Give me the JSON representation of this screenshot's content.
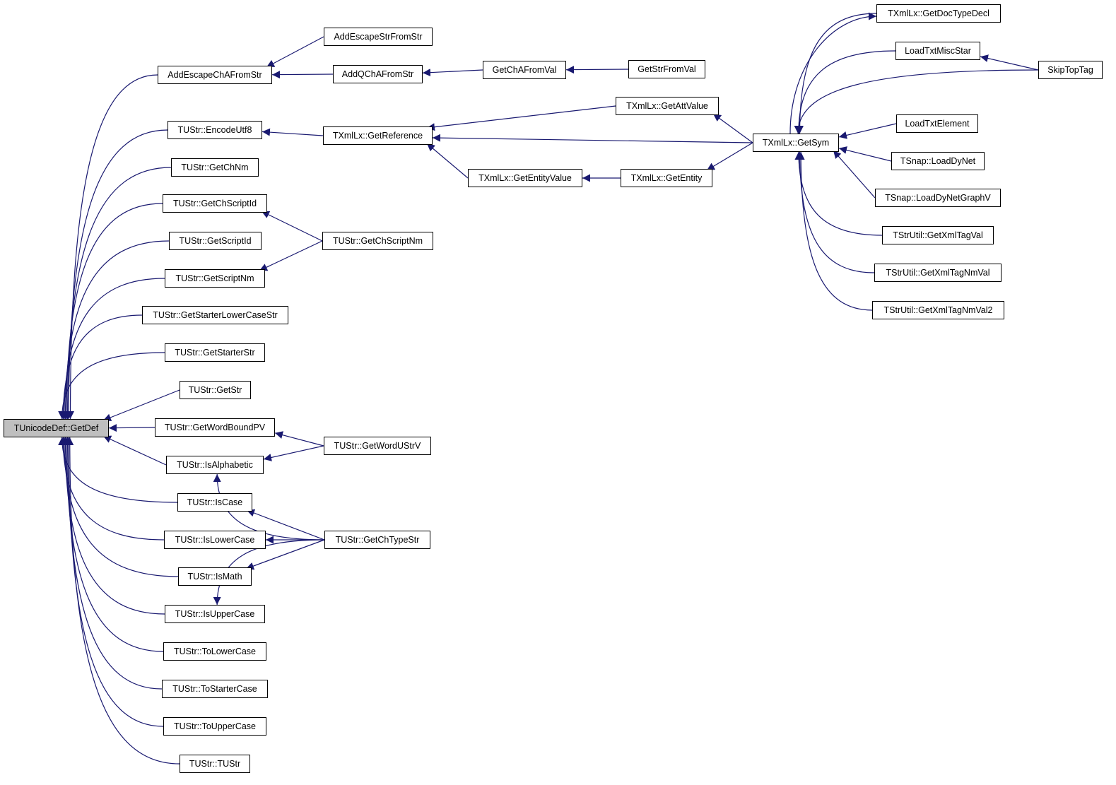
{
  "graph": {
    "edge_color": "#191970",
    "root_fill": "#bfbfbf",
    "nodes": [
      {
        "id": "GetDef",
        "label": "TUnicodeDef::GetDef",
        "root": true
      },
      {
        "id": "AddEscapeChAFromStr",
        "label": "AddEscapeChAFromStr"
      },
      {
        "id": "EncodeUtf8",
        "label": "TUStr::EncodeUtf8"
      },
      {
        "id": "GetChNm",
        "label": "TUStr::GetChNm"
      },
      {
        "id": "GetChScriptId",
        "label": "TUStr::GetChScriptId"
      },
      {
        "id": "GetScriptId",
        "label": "TUStr::GetScriptId"
      },
      {
        "id": "GetScriptNm",
        "label": "TUStr::GetScriptNm"
      },
      {
        "id": "GetStarterLowerCaseStr",
        "label": "TUStr::GetStarterLowerCaseStr"
      },
      {
        "id": "GetStarterStr",
        "label": "TUStr::GetStarterStr"
      },
      {
        "id": "GetStr",
        "label": "TUStr::GetStr"
      },
      {
        "id": "GetWordBoundPV",
        "label": "TUStr::GetWordBoundPV"
      },
      {
        "id": "IsAlphabetic",
        "label": "TUStr::IsAlphabetic"
      },
      {
        "id": "IsCase",
        "label": "TUStr::IsCase"
      },
      {
        "id": "IsLowerCase",
        "label": "TUStr::IsLowerCase"
      },
      {
        "id": "IsMath",
        "label": "TUStr::IsMath"
      },
      {
        "id": "IsUpperCase",
        "label": "TUStr::IsUpperCase"
      },
      {
        "id": "ToLowerCase",
        "label": "TUStr::ToLowerCase"
      },
      {
        "id": "ToStarterCase",
        "label": "TUStr::ToStarterCase"
      },
      {
        "id": "ToUpperCase",
        "label": "TUStr::ToUpperCase"
      },
      {
        "id": "TUStr",
        "label": "TUStr::TUStr"
      },
      {
        "id": "AddEscapeStrFromStr",
        "label": "AddEscapeStrFromStr"
      },
      {
        "id": "AddQChAFromStr",
        "label": "AddQChAFromStr"
      },
      {
        "id": "GetReference",
        "label": "TXmlLx::GetReference"
      },
      {
        "id": "GetChScriptNm",
        "label": "TUStr::GetChScriptNm"
      },
      {
        "id": "GetWordUStrV",
        "label": "TUStr::GetWordUStrV"
      },
      {
        "id": "GetChTypeStr",
        "label": "TUStr::GetChTypeStr"
      },
      {
        "id": "GetChAFromVal",
        "label": "GetChAFromVal"
      },
      {
        "id": "GetEntityValue",
        "label": "TXmlLx::GetEntityValue"
      },
      {
        "id": "GetStrFromVal",
        "label": "GetStrFromVal"
      },
      {
        "id": "GetAttValue",
        "label": "TXmlLx::GetAttValue"
      },
      {
        "id": "GetEntity",
        "label": "TXmlLx::GetEntity"
      },
      {
        "id": "GetSym",
        "label": "TXmlLx::GetSym"
      },
      {
        "id": "GetDocTypeDecl",
        "label": "TXmlLx::GetDocTypeDecl"
      },
      {
        "id": "LoadTxtMiscStar",
        "label": "LoadTxtMiscStar"
      },
      {
        "id": "LoadTxtElement",
        "label": "LoadTxtElement"
      },
      {
        "id": "LoadDyNet",
        "label": "TSnap::LoadDyNet"
      },
      {
        "id": "LoadDyNetGraphV",
        "label": "TSnap::LoadDyNetGraphV"
      },
      {
        "id": "GetXmlTagVal",
        "label": "TStrUtil::GetXmlTagVal"
      },
      {
        "id": "GetXmlTagNmVal",
        "label": "TStrUtil::GetXmlTagNmVal"
      },
      {
        "id": "GetXmlTagNmVal2",
        "label": "TStrUtil::GetXmlTagNmVal2"
      },
      {
        "id": "SkipTopTag",
        "label": "SkipTopTag"
      }
    ],
    "edges": [
      [
        "AddEscapeChAFromStr",
        "GetDef"
      ],
      [
        "EncodeUtf8",
        "GetDef"
      ],
      [
        "GetChNm",
        "GetDef"
      ],
      [
        "GetChScriptId",
        "GetDef"
      ],
      [
        "GetScriptId",
        "GetDef"
      ],
      [
        "GetScriptNm",
        "GetDef"
      ],
      [
        "GetStarterLowerCaseStr",
        "GetDef"
      ],
      [
        "GetStarterStr",
        "GetDef"
      ],
      [
        "GetStr",
        "GetDef"
      ],
      [
        "GetWordBoundPV",
        "GetDef"
      ],
      [
        "IsAlphabetic",
        "GetDef"
      ],
      [
        "IsCase",
        "GetDef"
      ],
      [
        "IsLowerCase",
        "GetDef"
      ],
      [
        "IsMath",
        "GetDef"
      ],
      [
        "IsUpperCase",
        "GetDef"
      ],
      [
        "ToLowerCase",
        "GetDef"
      ],
      [
        "ToStarterCase",
        "GetDef"
      ],
      [
        "ToUpperCase",
        "GetDef"
      ],
      [
        "TUStr",
        "GetDef"
      ],
      [
        "AddEscapeStrFromStr",
        "AddEscapeChAFromStr"
      ],
      [
        "AddQChAFromStr",
        "AddEscapeChAFromStr"
      ],
      [
        "GetChAFromVal",
        "AddQChAFromStr"
      ],
      [
        "GetStrFromVal",
        "GetChAFromVal"
      ],
      [
        "GetReference",
        "EncodeUtf8"
      ],
      [
        "GetAttValue",
        "GetReference"
      ],
      [
        "GetSym",
        "GetReference"
      ],
      [
        "GetEntityValue",
        "GetReference"
      ],
      [
        "GetEntity",
        "GetEntityValue"
      ],
      [
        "GetSym",
        "GetAttValue"
      ],
      [
        "GetSym",
        "GetEntity"
      ],
      [
        "GetChScriptNm",
        "GetChScriptId"
      ],
      [
        "GetChScriptNm",
        "GetScriptNm"
      ],
      [
        "GetWordUStrV",
        "GetWordBoundPV"
      ],
      [
        "GetWordUStrV",
        "IsAlphabetic"
      ],
      [
        "GetChTypeStr",
        "IsAlphabetic"
      ],
      [
        "GetChTypeStr",
        "IsCase"
      ],
      [
        "GetChTypeStr",
        "IsLowerCase"
      ],
      [
        "GetChTypeStr",
        "IsMath"
      ],
      [
        "GetChTypeStr",
        "IsUpperCase"
      ],
      [
        "GetDocTypeDecl",
        "GetSym"
      ],
      [
        "GetSym",
        "GetDocTypeDecl"
      ],
      [
        "LoadTxtMiscStar",
        "GetSym"
      ],
      [
        "SkipTopTag",
        "GetSym"
      ],
      [
        "SkipTopTag",
        "LoadTxtMiscStar"
      ],
      [
        "LoadTxtElement",
        "GetSym"
      ],
      [
        "LoadDyNet",
        "GetSym"
      ],
      [
        "LoadDyNetGraphV",
        "GetSym"
      ],
      [
        "GetXmlTagVal",
        "GetSym"
      ],
      [
        "GetXmlTagNmVal",
        "GetSym"
      ],
      [
        "GetXmlTagNmVal2",
        "GetSym"
      ]
    ]
  }
}
